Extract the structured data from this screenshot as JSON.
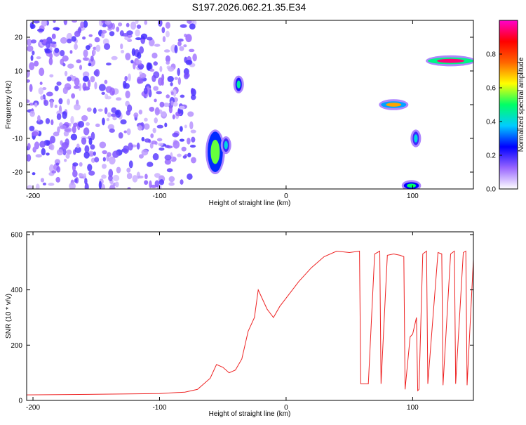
{
  "title": "S197.2026.062.21.35.E34",
  "chart_data": [
    {
      "type": "heatmap",
      "xlabel": "Height of straight line (km)",
      "ylabel": "Frequency (Hz)",
      "xlim": [
        -205,
        148
      ],
      "ylim": [
        -25,
        25
      ],
      "xticks": [
        -200,
        -100,
        0,
        100
      ],
      "yticks": [
        -20,
        -10,
        0,
        10,
        20
      ],
      "grid": false,
      "colorbar": {
        "label": "Normalized spectral amplitude",
        "range": [
          0,
          1
        ],
        "ticks": [
          "0.0",
          "0.2",
          "0.4",
          "0.6",
          "0.8"
        ],
        "colors": [
          "#ffffff",
          "#9966ff",
          "#0000ff",
          "#00ccff",
          "#00ff66",
          "#ffff00",
          "#ff6600",
          "#ff0000",
          "#ff00cc"
        ]
      },
      "features": [
        {
          "x": [
            -205,
            -72
          ],
          "y": [
            -25,
            25
          ],
          "amplitude": 0.15,
          "pattern": "scattered noise"
        },
        {
          "x": [
            -62,
            -50
          ],
          "y": [
            -20,
            -8
          ],
          "amplitude": 0.55
        },
        {
          "x": [
            -40,
            -35
          ],
          "y": [
            4,
            8
          ],
          "amplitude": 0.45
        },
        {
          "x": [
            -50,
            -45
          ],
          "y": [
            -14,
            -10
          ],
          "amplitude": 0.4
        },
        {
          "x": [
            75,
            95
          ],
          "y": [
            -1,
            1
          ],
          "amplitude": 0.7
        },
        {
          "x": [
            93,
            105
          ],
          "y": [
            -25,
            -23
          ],
          "amplitude": 0.5
        },
        {
          "x": [
            100,
            105
          ],
          "y": [
            -12,
            -8
          ],
          "amplitude": 0.4
        },
        {
          "x": [
            112,
            148
          ],
          "y": [
            12,
            14
          ],
          "amplitude": 0.95
        }
      ]
    },
    {
      "type": "line",
      "xlabel": "Height of straight line (km)",
      "ylabel": "SNR (10 * v/v)",
      "xlim": [
        -205,
        148
      ],
      "ylim": [
        0,
        610
      ],
      "xticks": [
        -200,
        -100,
        0,
        100
      ],
      "yticks": [
        0,
        200,
        400,
        600
      ],
      "grid": false,
      "series": [
        {
          "color": "#ee2222",
          "x": [
            -205,
            -150,
            -100,
            -80,
            -70,
            -60,
            -55,
            -50,
            -45,
            -40,
            -35,
            -30,
            -25,
            -22,
            -20,
            -15,
            -10,
            -5,
            0,
            5,
            10,
            20,
            30,
            40,
            50,
            58,
            59,
            65,
            70,
            74,
            75,
            80,
            85,
            90,
            93,
            94,
            98,
            100,
            103,
            104,
            105,
            108,
            111,
            112,
            120,
            123,
            124,
            130,
            133,
            134,
            140,
            142,
            143,
            148
          ],
          "y": [
            20,
            22,
            25,
            30,
            40,
            80,
            130,
            120,
            100,
            110,
            150,
            250,
            300,
            400,
            380,
            330,
            300,
            340,
            370,
            400,
            430,
            480,
            520,
            540,
            535,
            540,
            60,
            60,
            530,
            540,
            60,
            525,
            530,
            525,
            520,
            40,
            230,
            240,
            300,
            35,
            40,
            530,
            540,
            60,
            535,
            530,
            55,
            530,
            540,
            60,
            535,
            540,
            55,
            510
          ]
        }
      ]
    }
  ]
}
